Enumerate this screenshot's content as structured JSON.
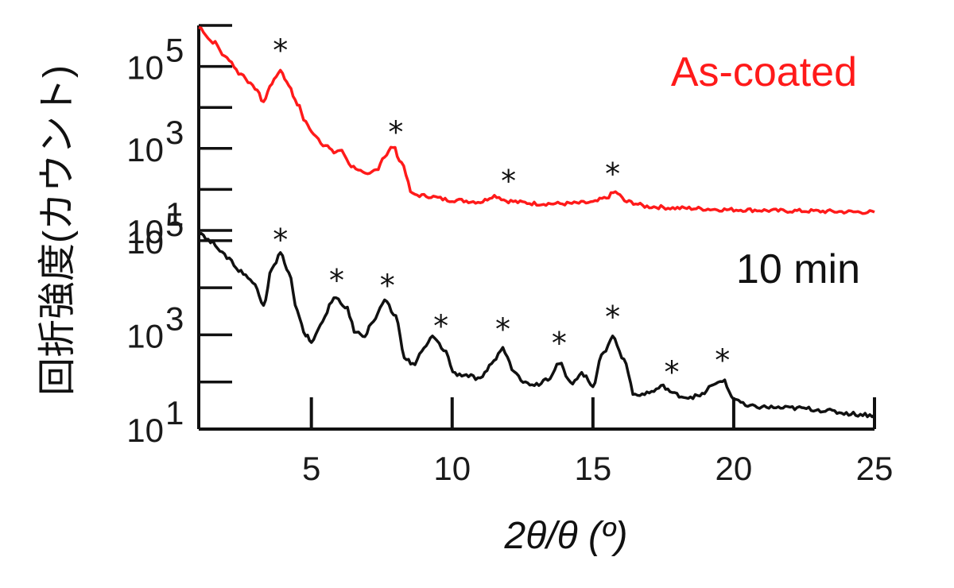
{
  "chart_data": {
    "type": "line",
    "xlabel": "2θ/θ (º)",
    "ylabel": "回折強度(カウント)",
    "xlim": [
      1,
      25
    ],
    "x_ticks": [
      5,
      10,
      15,
      20,
      25
    ],
    "yscale": "log",
    "grid": false,
    "panels": [
      {
        "name": "As-coated",
        "color": "#ff1a1a",
        "ylim": [
          10,
          1000000
        ],
        "y_ticks": [
          {
            "value": 10,
            "label": "10",
            "exp": "1"
          },
          {
            "value": 1000,
            "label": "10",
            "exp": "3"
          },
          {
            "value": 100000,
            "label": "10",
            "exp": "5"
          }
        ],
        "x": [
          1.0,
          1.5,
          2.0,
          2.5,
          3.0,
          3.3,
          3.6,
          3.9,
          4.2,
          4.5,
          4.8,
          5.0,
          5.5,
          5.8,
          6.0,
          6.5,
          7.0,
          7.3,
          7.6,
          7.9,
          8.2,
          8.6,
          9.0,
          10.0,
          11.0,
          11.5,
          12.0,
          12.5,
          13.0,
          14.0,
          15.0,
          15.4,
          15.8,
          16.2,
          17.0,
          18.0,
          20.0,
          22.0,
          25.0
        ],
        "y": [
          900000,
          400000,
          160000,
          65000,
          30000,
          14000,
          40000,
          80000,
          35000,
          12000,
          4500,
          2500,
          1200,
          800,
          900,
          350,
          220,
          300,
          650,
          1100,
          450,
          75,
          70,
          55,
          50,
          70,
          52,
          48,
          45,
          45,
          48,
          60,
          85,
          50,
          38,
          35,
          32,
          30,
          28
        ],
        "peak_marks_x": [
          3.9,
          8.0,
          12.0,
          15.7
        ]
      },
      {
        "name": "10 min",
        "color": "#111111",
        "ylim": [
          10,
          200000
        ],
        "y_ticks": [
          {
            "value": 10,
            "label": "10",
            "exp": "1"
          },
          {
            "value": 1000,
            "label": "10",
            "exp": "3"
          },
          {
            "value": 100000,
            "label": "10",
            "exp": "5"
          }
        ],
        "x": [
          1.0,
          1.5,
          2.0,
          2.5,
          3.0,
          3.3,
          3.6,
          3.9,
          4.2,
          4.5,
          4.8,
          5.0,
          5.4,
          5.8,
          6.2,
          6.6,
          6.9,
          7.2,
          7.6,
          8.0,
          8.3,
          8.6,
          9.0,
          9.3,
          9.7,
          10.1,
          10.5,
          11.0,
          11.4,
          11.8,
          12.2,
          12.6,
          13.0,
          13.4,
          13.8,
          14.2,
          14.6,
          15.0,
          15.3,
          15.7,
          16.1,
          16.5,
          17.0,
          17.5,
          17.9,
          18.3,
          18.8,
          19.2,
          19.6,
          20.0,
          20.5,
          22.0,
          25.0
        ],
        "y": [
          150000,
          90000,
          45000,
          22000,
          12000,
          4500,
          25000,
          55000,
          20000,
          3000,
          1000,
          700,
          2000,
          6000,
          4000,
          1100,
          1000,
          2000,
          5000,
          2500,
          350,
          230,
          500,
          900,
          500,
          150,
          140,
          110,
          250,
          500,
          180,
          95,
          90,
          120,
          250,
          95,
          150,
          85,
          350,
          900,
          300,
          50,
          60,
          80,
          55,
          48,
          50,
          80,
          110,
          45,
          30,
          28,
          20
        ],
        "peak_marks_x": [
          3.9,
          5.9,
          7.7,
          9.6,
          11.8,
          13.8,
          15.7,
          17.8,
          19.6
        ]
      }
    ]
  }
}
